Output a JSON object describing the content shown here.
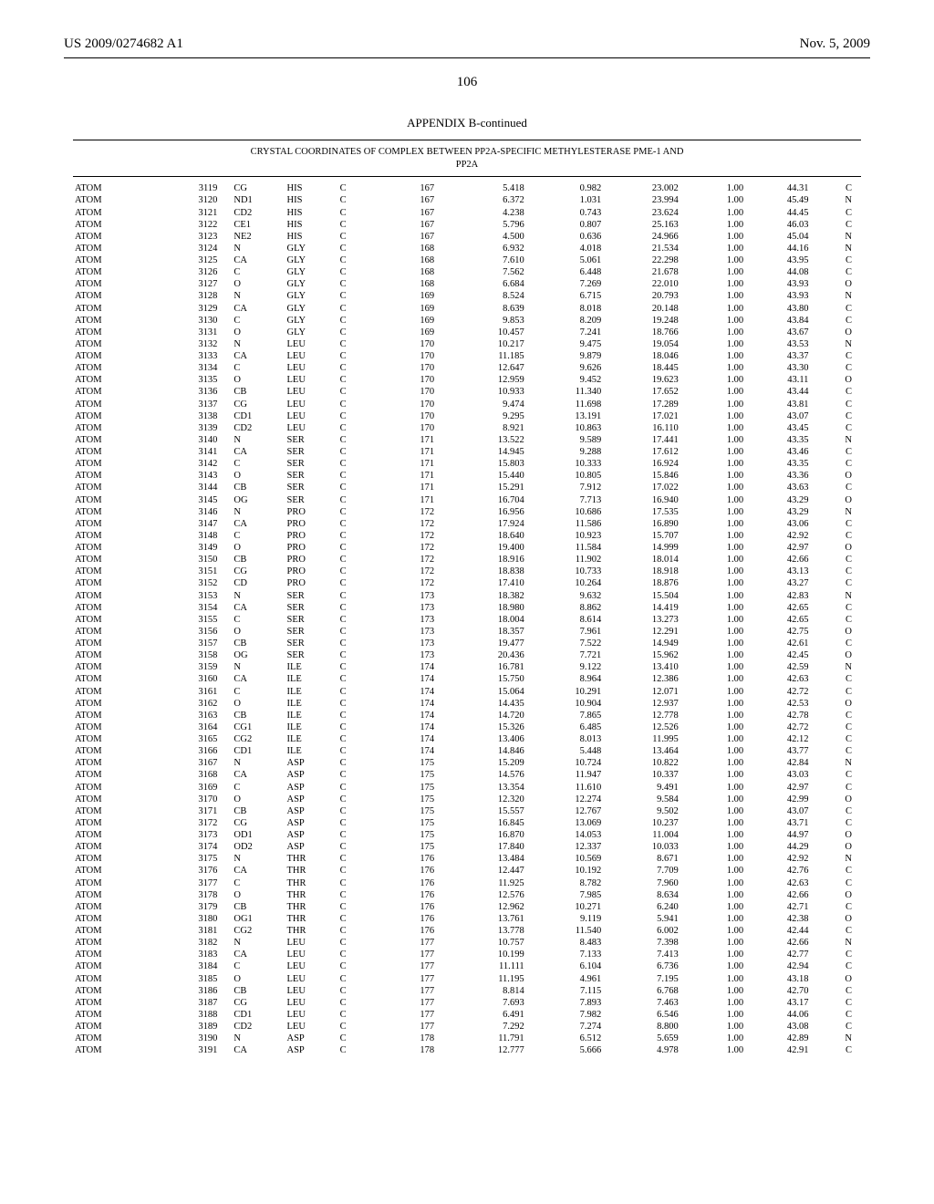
{
  "header": {
    "pub_no": "US 2009/0274682 A1",
    "date": "Nov. 5, 2009"
  },
  "page_number": "106",
  "appendix_title": "APPENDIX B-continued",
  "table_caption_l1": "CRYSTAL COORDINATES OF COMPLEX BETWEEN PP2A-SPECIFIC METHYLESTERASE PME-1 AND",
  "table_caption_l2": "PP2A",
  "rows": [
    [
      "ATOM",
      "3119",
      "CG",
      "HIS",
      "C",
      "167",
      "5.418",
      "0.982",
      "23.002",
      "1.00",
      "44.31",
      "C"
    ],
    [
      "ATOM",
      "3120",
      "ND1",
      "HIS",
      "C",
      "167",
      "6.372",
      "1.031",
      "23.994",
      "1.00",
      "45.49",
      "N"
    ],
    [
      "ATOM",
      "3121",
      "CD2",
      "HIS",
      "C",
      "167",
      "4.238",
      "0.743",
      "23.624",
      "1.00",
      "44.45",
      "C"
    ],
    [
      "ATOM",
      "3122",
      "CE1",
      "HIS",
      "C",
      "167",
      "5.796",
      "0.807",
      "25.163",
      "1.00",
      "46.03",
      "C"
    ],
    [
      "ATOM",
      "3123",
      "NE2",
      "HIS",
      "C",
      "167",
      "4.500",
      "0.636",
      "24.966",
      "1.00",
      "45.04",
      "N"
    ],
    [
      "ATOM",
      "3124",
      "N",
      "GLY",
      "C",
      "168",
      "6.932",
      "4.018",
      "21.534",
      "1.00",
      "44.16",
      "N"
    ],
    [
      "ATOM",
      "3125",
      "CA",
      "GLY",
      "C",
      "168",
      "7.610",
      "5.061",
      "22.298",
      "1.00",
      "43.95",
      "C"
    ],
    [
      "ATOM",
      "3126",
      "C",
      "GLY",
      "C",
      "168",
      "7.562",
      "6.448",
      "21.678",
      "1.00",
      "44.08",
      "C"
    ],
    [
      "ATOM",
      "3127",
      "O",
      "GLY",
      "C",
      "168",
      "6.684",
      "7.269",
      "22.010",
      "1.00",
      "43.93",
      "O"
    ],
    [
      "ATOM",
      "3128",
      "N",
      "GLY",
      "C",
      "169",
      "8.524",
      "6.715",
      "20.793",
      "1.00",
      "43.93",
      "N"
    ],
    [
      "ATOM",
      "3129",
      "CA",
      "GLY",
      "C",
      "169",
      "8.639",
      "8.018",
      "20.148",
      "1.00",
      "43.80",
      "C"
    ],
    [
      "ATOM",
      "3130",
      "C",
      "GLY",
      "C",
      "169",
      "9.853",
      "8.209",
      "19.248",
      "1.00",
      "43.84",
      "C"
    ],
    [
      "ATOM",
      "3131",
      "O",
      "GLY",
      "C",
      "169",
      "10.457",
      "7.241",
      "18.766",
      "1.00",
      "43.67",
      "O"
    ],
    [
      "ATOM",
      "3132",
      "N",
      "LEU",
      "C",
      "170",
      "10.217",
      "9.475",
      "19.054",
      "1.00",
      "43.53",
      "N"
    ],
    [
      "ATOM",
      "3133",
      "CA",
      "LEU",
      "C",
      "170",
      "11.185",
      "9.879",
      "18.046",
      "1.00",
      "43.37",
      "C"
    ],
    [
      "ATOM",
      "3134",
      "C",
      "LEU",
      "C",
      "170",
      "12.647",
      "9.626",
      "18.445",
      "1.00",
      "43.30",
      "C"
    ],
    [
      "ATOM",
      "3135",
      "O",
      "LEU",
      "C",
      "170",
      "12.959",
      "9.452",
      "19.623",
      "1.00",
      "43.11",
      "O"
    ],
    [
      "ATOM",
      "3136",
      "CB",
      "LEU",
      "C",
      "170",
      "10.933",
      "11.340",
      "17.652",
      "1.00",
      "43.44",
      "C"
    ],
    [
      "ATOM",
      "3137",
      "CG",
      "LEU",
      "C",
      "170",
      "9.474",
      "11.698",
      "17.289",
      "1.00",
      "43.81",
      "C"
    ],
    [
      "ATOM",
      "3138",
      "CD1",
      "LEU",
      "C",
      "170",
      "9.295",
      "13.191",
      "17.021",
      "1.00",
      "43.07",
      "C"
    ],
    [
      "ATOM",
      "3139",
      "CD2",
      "LEU",
      "C",
      "170",
      "8.921",
      "10.863",
      "16.110",
      "1.00",
      "43.45",
      "C"
    ],
    [
      "ATOM",
      "3140",
      "N",
      "SER",
      "C",
      "171",
      "13.522",
      "9.589",
      "17.441",
      "1.00",
      "43.35",
      "N"
    ],
    [
      "ATOM",
      "3141",
      "CA",
      "SER",
      "C",
      "171",
      "14.945",
      "9.288",
      "17.612",
      "1.00",
      "43.46",
      "C"
    ],
    [
      "ATOM",
      "3142",
      "C",
      "SER",
      "C",
      "171",
      "15.803",
      "10.333",
      "16.924",
      "1.00",
      "43.35",
      "C"
    ],
    [
      "ATOM",
      "3143",
      "O",
      "SER",
      "C",
      "171",
      "15.440",
      "10.805",
      "15.846",
      "1.00",
      "43.36",
      "O"
    ],
    [
      "ATOM",
      "3144",
      "CB",
      "SER",
      "C",
      "171",
      "15.291",
      "7.912",
      "17.022",
      "1.00",
      "43.63",
      "C"
    ],
    [
      "ATOM",
      "3145",
      "OG",
      "SER",
      "C",
      "171",
      "16.704",
      "7.713",
      "16.940",
      "1.00",
      "43.29",
      "O"
    ],
    [
      "ATOM",
      "3146",
      "N",
      "PRO",
      "C",
      "172",
      "16.956",
      "10.686",
      "17.535",
      "1.00",
      "43.29",
      "N"
    ],
    [
      "ATOM",
      "3147",
      "CA",
      "PRO",
      "C",
      "172",
      "17.924",
      "11.586",
      "16.890",
      "1.00",
      "43.06",
      "C"
    ],
    [
      "ATOM",
      "3148",
      "C",
      "PRO",
      "C",
      "172",
      "18.640",
      "10.923",
      "15.707",
      "1.00",
      "42.92",
      "C"
    ],
    [
      "ATOM",
      "3149",
      "O",
      "PRO",
      "C",
      "172",
      "19.400",
      "11.584",
      "14.999",
      "1.00",
      "42.97",
      "O"
    ],
    [
      "ATOM",
      "3150",
      "CB",
      "PRO",
      "C",
      "172",
      "18.916",
      "11.902",
      "18.014",
      "1.00",
      "42.66",
      "C"
    ],
    [
      "ATOM",
      "3151",
      "CG",
      "PRO",
      "C",
      "172",
      "18.838",
      "10.733",
      "18.918",
      "1.00",
      "43.13",
      "C"
    ],
    [
      "ATOM",
      "3152",
      "CD",
      "PRO",
      "C",
      "172",
      "17.410",
      "10.264",
      "18.876",
      "1.00",
      "43.27",
      "C"
    ],
    [
      "ATOM",
      "3153",
      "N",
      "SER",
      "C",
      "173",
      "18.382",
      "9.632",
      "15.504",
      "1.00",
      "42.83",
      "N"
    ],
    [
      "ATOM",
      "3154",
      "CA",
      "SER",
      "C",
      "173",
      "18.980",
      "8.862",
      "14.419",
      "1.00",
      "42.65",
      "C"
    ],
    [
      "ATOM",
      "3155",
      "C",
      "SER",
      "C",
      "173",
      "18.004",
      "8.614",
      "13.273",
      "1.00",
      "42.65",
      "C"
    ],
    [
      "ATOM",
      "3156",
      "O",
      "SER",
      "C",
      "173",
      "18.357",
      "7.961",
      "12.291",
      "1.00",
      "42.75",
      "O"
    ],
    [
      "ATOM",
      "3157",
      "CB",
      "SER",
      "C",
      "173",
      "19.477",
      "7.522",
      "14.949",
      "1.00",
      "42.61",
      "C"
    ],
    [
      "ATOM",
      "3158",
      "OG",
      "SER",
      "C",
      "173",
      "20.436",
      "7.721",
      "15.962",
      "1.00",
      "42.45",
      "O"
    ],
    [
      "ATOM",
      "3159",
      "N",
      "ILE",
      "C",
      "174",
      "16.781",
      "9.122",
      "13.410",
      "1.00",
      "42.59",
      "N"
    ],
    [
      "ATOM",
      "3160",
      "CA",
      "ILE",
      "C",
      "174",
      "15.750",
      "8.964",
      "12.386",
      "1.00",
      "42.63",
      "C"
    ],
    [
      "ATOM",
      "3161",
      "C",
      "ILE",
      "C",
      "174",
      "15.064",
      "10.291",
      "12.071",
      "1.00",
      "42.72",
      "C"
    ],
    [
      "ATOM",
      "3162",
      "O",
      "ILE",
      "C",
      "174",
      "14.435",
      "10.904",
      "12.937",
      "1.00",
      "42.53",
      "O"
    ],
    [
      "ATOM",
      "3163",
      "CB",
      "ILE",
      "C",
      "174",
      "14.720",
      "7.865",
      "12.778",
      "1.00",
      "42.78",
      "C"
    ],
    [
      "ATOM",
      "3164",
      "CG1",
      "ILE",
      "C",
      "174",
      "15.326",
      "6.485",
      "12.526",
      "1.00",
      "42.72",
      "C"
    ],
    [
      "ATOM",
      "3165",
      "CG2",
      "ILE",
      "C",
      "174",
      "13.406",
      "8.013",
      "11.995",
      "1.00",
      "42.12",
      "C"
    ],
    [
      "ATOM",
      "3166",
      "CD1",
      "ILE",
      "C",
      "174",
      "14.846",
      "5.448",
      "13.464",
      "1.00",
      "43.77",
      "C"
    ],
    [
      "ATOM",
      "3167",
      "N",
      "ASP",
      "C",
      "175",
      "15.209",
      "10.724",
      "10.822",
      "1.00",
      "42.84",
      "N"
    ],
    [
      "ATOM",
      "3168",
      "CA",
      "ASP",
      "C",
      "175",
      "14.576",
      "11.947",
      "10.337",
      "1.00",
      "43.03",
      "C"
    ],
    [
      "ATOM",
      "3169",
      "C",
      "ASP",
      "C",
      "175",
      "13.354",
      "11.610",
      "9.491",
      "1.00",
      "42.97",
      "C"
    ],
    [
      "ATOM",
      "3170",
      "O",
      "ASP",
      "C",
      "175",
      "12.320",
      "12.274",
      "9.584",
      "1.00",
      "42.99",
      "O"
    ],
    [
      "ATOM",
      "3171",
      "CB",
      "ASP",
      "C",
      "175",
      "15.557",
      "12.767",
      "9.502",
      "1.00",
      "43.07",
      "C"
    ],
    [
      "ATOM",
      "3172",
      "CG",
      "ASP",
      "C",
      "175",
      "16.845",
      "13.069",
      "10.237",
      "1.00",
      "43.71",
      "C"
    ],
    [
      "ATOM",
      "3173",
      "OD1",
      "ASP",
      "C",
      "175",
      "16.870",
      "14.053",
      "11.004",
      "1.00",
      "44.97",
      "O"
    ],
    [
      "ATOM",
      "3174",
      "OD2",
      "ASP",
      "C",
      "175",
      "17.840",
      "12.337",
      "10.033",
      "1.00",
      "44.29",
      "O"
    ],
    [
      "ATOM",
      "3175",
      "N",
      "THR",
      "C",
      "176",
      "13.484",
      "10.569",
      "8.671",
      "1.00",
      "42.92",
      "N"
    ],
    [
      "ATOM",
      "3176",
      "CA",
      "THR",
      "C",
      "176",
      "12.447",
      "10.192",
      "7.709",
      "1.00",
      "42.76",
      "C"
    ],
    [
      "ATOM",
      "3177",
      "C",
      "THR",
      "C",
      "176",
      "11.925",
      "8.782",
      "7.960",
      "1.00",
      "42.63",
      "C"
    ],
    [
      "ATOM",
      "3178",
      "O",
      "THR",
      "C",
      "176",
      "12.576",
      "7.985",
      "8.634",
      "1.00",
      "42.66",
      "O"
    ],
    [
      "ATOM",
      "3179",
      "CB",
      "THR",
      "C",
      "176",
      "12.962",
      "10.271",
      "6.240",
      "1.00",
      "42.71",
      "C"
    ],
    [
      "ATOM",
      "3180",
      "OG1",
      "THR",
      "C",
      "176",
      "13.761",
      "9.119",
      "5.941",
      "1.00",
      "42.38",
      "O"
    ],
    [
      "ATOM",
      "3181",
      "CG2",
      "THR",
      "C",
      "176",
      "13.778",
      "11.540",
      "6.002",
      "1.00",
      "42.44",
      "C"
    ],
    [
      "ATOM",
      "3182",
      "N",
      "LEU",
      "C",
      "177",
      "10.757",
      "8.483",
      "7.398",
      "1.00",
      "42.66",
      "N"
    ],
    [
      "ATOM",
      "3183",
      "CA",
      "LEU",
      "C",
      "177",
      "10.199",
      "7.133",
      "7.413",
      "1.00",
      "42.77",
      "C"
    ],
    [
      "ATOM",
      "3184",
      "C",
      "LEU",
      "C",
      "177",
      "11.111",
      "6.104",
      "6.736",
      "1.00",
      "42.94",
      "C"
    ],
    [
      "ATOM",
      "3185",
      "O",
      "LEU",
      "C",
      "177",
      "11.195",
      "4.961",
      "7.195",
      "1.00",
      "43.18",
      "O"
    ],
    [
      "ATOM",
      "3186",
      "CB",
      "LEU",
      "C",
      "177",
      "8.814",
      "7.115",
      "6.768",
      "1.00",
      "42.70",
      "C"
    ],
    [
      "ATOM",
      "3187",
      "CG",
      "LEU",
      "C",
      "177",
      "7.693",
      "7.893",
      "7.463",
      "1.00",
      "43.17",
      "C"
    ],
    [
      "ATOM",
      "3188",
      "CD1",
      "LEU",
      "C",
      "177",
      "6.491",
      "7.982",
      "6.546",
      "1.00",
      "44.06",
      "C"
    ],
    [
      "ATOM",
      "3189",
      "CD2",
      "LEU",
      "C",
      "177",
      "7.292",
      "7.274",
      "8.800",
      "1.00",
      "43.08",
      "C"
    ],
    [
      "ATOM",
      "3190",
      "N",
      "ASP",
      "C",
      "178",
      "11.791",
      "6.512",
      "5.659",
      "1.00",
      "42.89",
      "N"
    ],
    [
      "ATOM",
      "3191",
      "CA",
      "ASP",
      "C",
      "178",
      "12.777",
      "5.666",
      "4.978",
      "1.00",
      "42.91",
      "C"
    ]
  ]
}
